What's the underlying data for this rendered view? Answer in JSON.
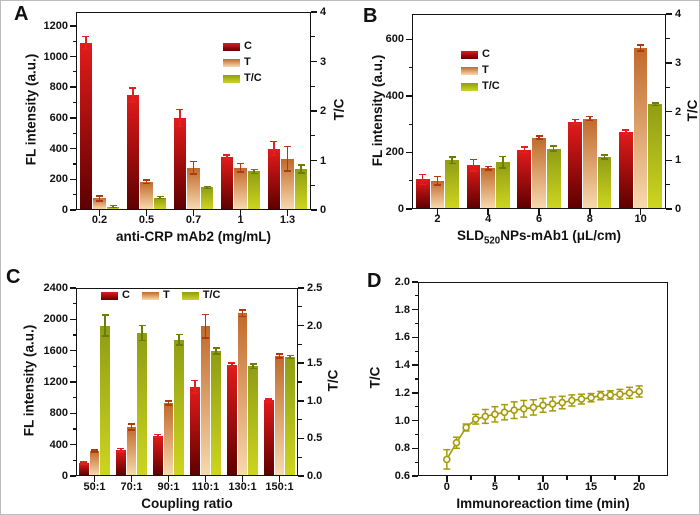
{
  "figure": {
    "panel_labels": [
      "A",
      "B",
      "C",
      "D"
    ],
    "background": "#ffffff",
    "axis_color": "#141414",
    "series_colors": {
      "C": {
        "top": "#e31b1b",
        "bottom": "#5e0000",
        "error": "#e12020"
      },
      "T": {
        "top": "#c1692a",
        "bottom": "#f7d9ae",
        "error": "#b03a10"
      },
      "TC": {
        "top": "#8e9d13",
        "bottom": "#cdd520",
        "error": "#6c7c04"
      }
    }
  },
  "chart_data": [
    {
      "panel": "A",
      "type": "bar",
      "title": "",
      "xlabel": "anti-CRP mAb2 (mg/mL)",
      "ylabel": "FL intensity (a.u.)",
      "ylabel_right": "T/C",
      "categories": [
        "0.2",
        "0.5",
        "0.7",
        "1",
        "1.3"
      ],
      "series": [
        {
          "name": "C",
          "axis": "left",
          "values": [
            1090,
            750,
            600,
            345,
            400
          ],
          "errors": [
            40,
            45,
            55,
            15,
            45
          ]
        },
        {
          "name": "T",
          "axis": "left",
          "values": [
            75,
            185,
            275,
            275,
            335
          ],
          "errors": [
            15,
            12,
            40,
            28,
            80
          ]
        },
        {
          "name": "T/C",
          "axis": "right",
          "values": [
            0.07,
            0.25,
            0.46,
            0.78,
            0.83
          ],
          "errors": [
            0.02,
            0.02,
            0.02,
            0.04,
            0.08
          ]
        }
      ],
      "ylim_left": [
        0,
        1290
      ],
      "yticks_left": [
        "0",
        "200",
        "400",
        "600",
        "800",
        "1000",
        "1200"
      ],
      "ylim_right": [
        0,
        4
      ],
      "yticks_right": [
        "0",
        "1",
        "2",
        "3",
        "4"
      ],
      "legend": {
        "orientation": "vertical",
        "position": "upper-right",
        "labels": [
          "C",
          "T",
          "T/C"
        ]
      },
      "grid": false
    },
    {
      "panel": "B",
      "type": "bar",
      "title": "",
      "xlabel": "SLD520NPs-mAb1 (μL/cm)",
      "xlabel_parts": [
        {
          "text": "SLD",
          "sub": false
        },
        {
          "text": "520",
          "sub": true
        },
        {
          "text": "NPs-mAb1 (μL/cm)",
          "sub": false
        }
      ],
      "ylabel": "FL intensity (a.u.)",
      "ylabel_right": "T/C",
      "categories": [
        "2",
        "4",
        "6",
        "8",
        "10"
      ],
      "series": [
        {
          "name": "C",
          "axis": "left",
          "values": [
            105,
            155,
            210,
            308,
            272
          ],
          "errors": [
            18,
            20,
            10,
            8,
            8
          ]
        },
        {
          "name": "T",
          "axis": "left",
          "values": [
            100,
            145,
            253,
            320,
            570
          ],
          "errors": [
            15,
            6,
            6,
            7,
            10
          ]
        },
        {
          "name": "T/C",
          "axis": "right",
          "values": [
            1.0,
            0.96,
            1.24,
            1.07,
            2.15
          ],
          "errors": [
            0.07,
            0.12,
            0.05,
            0.04,
            0.03
          ]
        }
      ],
      "ylim_left": [
        0,
        690
      ],
      "yticks_left": [
        "0",
        "200",
        "400",
        "600"
      ],
      "ylim_right": [
        0,
        4
      ],
      "yticks_right": [
        "0",
        "1",
        "2",
        "3",
        "4"
      ],
      "legend": {
        "orientation": "vertical",
        "position": "upper-left",
        "labels": [
          "C",
          "T",
          "T/C"
        ]
      },
      "grid": false
    },
    {
      "panel": "C",
      "type": "bar",
      "title": "",
      "xlabel": "Coupling ratio",
      "ylabel": "FL intensity (a.u.)",
      "ylabel_right": "T/C",
      "categories": [
        "50:1",
        "70:1",
        "90:1",
        "110:1",
        "130:1",
        "150:1"
      ],
      "series": [
        {
          "name": "C",
          "axis": "left",
          "values": [
            165,
            330,
            510,
            1140,
            1420,
            965
          ],
          "errors": [
            15,
            20,
            20,
            80,
            25,
            20
          ]
        },
        {
          "name": "T",
          "axis": "left",
          "values": [
            320,
            625,
            930,
            1910,
            2080,
            1530
          ],
          "errors": [
            10,
            40,
            25,
            150,
            40,
            25
          ]
        },
        {
          "name": "T/C",
          "axis": "right",
          "values": [
            2.0,
            1.9,
            1.81,
            1.66,
            1.46,
            1.58
          ],
          "errors": [
            0.14,
            0.1,
            0.07,
            0.04,
            0.03,
            0.02
          ]
        }
      ],
      "ylim_left": [
        0,
        2400
      ],
      "yticks_left": [
        "0",
        "400",
        "800",
        "1200",
        "1600",
        "2000",
        "2400"
      ],
      "ylim_right": [
        0,
        2.5
      ],
      "yticks_right": [
        "0.0",
        "0.5",
        "1.0",
        "1.5",
        "2.0",
        "2.5"
      ],
      "legend": {
        "orientation": "horizontal",
        "position": "top-center",
        "labels": [
          "C",
          "T",
          "T/C"
        ]
      },
      "grid": false
    },
    {
      "panel": "D",
      "type": "line",
      "title": "",
      "xlabel": "Immunoreaction time (min)",
      "ylabel": "T/C",
      "x": [
        0,
        1,
        2,
        3,
        4,
        5,
        6,
        7,
        8,
        9,
        10,
        11,
        12,
        13,
        14,
        15,
        16,
        17,
        18,
        19,
        20
      ],
      "y": [
        0.72,
        0.84,
        0.95,
        1.01,
        1.03,
        1.045,
        1.06,
        1.075,
        1.085,
        1.095,
        1.11,
        1.12,
        1.13,
        1.145,
        1.155,
        1.165,
        1.18,
        1.185,
        1.19,
        1.2,
        1.21
      ],
      "errors": [
        0.07,
        0.04,
        0.025,
        0.035,
        0.05,
        0.055,
        0.055,
        0.06,
        0.06,
        0.055,
        0.05,
        0.05,
        0.045,
        0.04,
        0.035,
        0.03,
        0.03,
        0.03,
        0.035,
        0.04,
        0.04
      ],
      "line_color": "#a49a0b",
      "marker": "open-circle",
      "marker_fill": "#fdfcf0",
      "xlim": [
        -3,
        23
      ],
      "xticks": [
        "0",
        "5",
        "10",
        "15",
        "20"
      ],
      "ylim": [
        0.6,
        2.0
      ],
      "yticks": [
        "0.6",
        "0.8",
        "1.0",
        "1.2",
        "1.4",
        "1.6",
        "1.8",
        "2.0"
      ],
      "legend": null,
      "grid": false
    }
  ]
}
